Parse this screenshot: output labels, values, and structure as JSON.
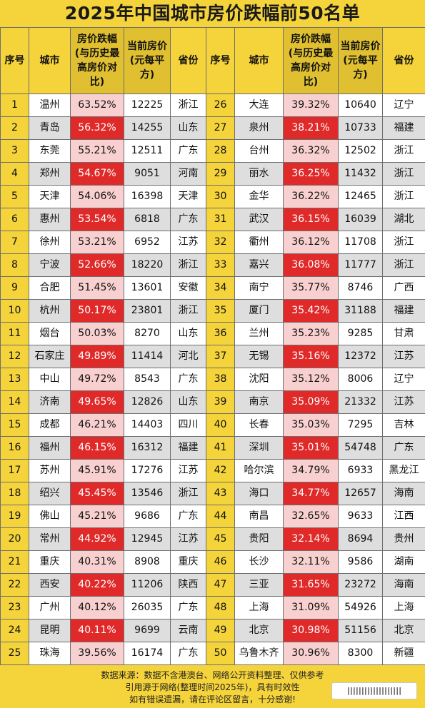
{
  "title": "2025年中国城市房价跌幅前50名单",
  "headers": {
    "seq": "序号",
    "city": "城市",
    "drop": "房价跌幅(与历史最高房价对比)",
    "price": "当前房价(元每平方)",
    "province": "省份"
  },
  "rows": [
    {
      "left": {
        "seq": "1",
        "city": "温州",
        "drop": "63.52%",
        "price": "12225",
        "province": "浙江"
      },
      "right": {
        "seq": "26",
        "city": "大连",
        "drop": "39.32%",
        "price": "10640",
        "province": "辽宁"
      }
    },
    {
      "left": {
        "seq": "2",
        "city": "青岛",
        "drop": "56.32%",
        "price": "14255",
        "province": "山东"
      },
      "right": {
        "seq": "27",
        "city": "泉州",
        "drop": "38.21%",
        "price": "10733",
        "province": "福建"
      }
    },
    {
      "left": {
        "seq": "3",
        "city": "东莞",
        "drop": "55.21%",
        "price": "12511",
        "province": "广东"
      },
      "right": {
        "seq": "28",
        "city": "台州",
        "drop": "36.32%",
        "price": "12502",
        "province": "浙江"
      }
    },
    {
      "left": {
        "seq": "4",
        "city": "郑州",
        "drop": "54.67%",
        "price": "9051",
        "province": "河南"
      },
      "right": {
        "seq": "29",
        "city": "丽水",
        "drop": "36.25%",
        "price": "11432",
        "province": "浙江"
      }
    },
    {
      "left": {
        "seq": "5",
        "city": "天津",
        "drop": "54.06%",
        "price": "16398",
        "province": "天津"
      },
      "right": {
        "seq": "30",
        "city": "金华",
        "drop": "36.22%",
        "price": "12465",
        "province": "浙江"
      }
    },
    {
      "left": {
        "seq": "6",
        "city": "惠州",
        "drop": "53.54%",
        "price": "6818",
        "province": "广东"
      },
      "right": {
        "seq": "31",
        "city": "武汉",
        "drop": "36.15%",
        "price": "16039",
        "province": "湖北"
      }
    },
    {
      "left": {
        "seq": "7",
        "city": "徐州",
        "drop": "53.21%",
        "price": "6952",
        "province": "江苏"
      },
      "right": {
        "seq": "32",
        "city": "衢州",
        "drop": "36.12%",
        "price": "11708",
        "province": "浙江"
      }
    },
    {
      "left": {
        "seq": "8",
        "city": "宁波",
        "drop": "52.66%",
        "price": "18220",
        "province": "浙江"
      },
      "right": {
        "seq": "33",
        "city": "嘉兴",
        "drop": "36.08%",
        "price": "11777",
        "province": "浙江"
      }
    },
    {
      "left": {
        "seq": "9",
        "city": "合肥",
        "drop": "51.45%",
        "price": "13601",
        "province": "安徽"
      },
      "right": {
        "seq": "34",
        "city": "南宁",
        "drop": "35.77%",
        "price": "8746",
        "province": "广西"
      }
    },
    {
      "left": {
        "seq": "10",
        "city": "杭州",
        "drop": "50.17%",
        "price": "23801",
        "province": "浙江"
      },
      "right": {
        "seq": "35",
        "city": "厦门",
        "drop": "35.42%",
        "price": "31188",
        "province": "福建"
      }
    },
    {
      "left": {
        "seq": "11",
        "city": "烟台",
        "drop": "50.03%",
        "price": "8270",
        "province": "山东"
      },
      "right": {
        "seq": "36",
        "city": "兰州",
        "drop": "35.23%",
        "price": "9285",
        "province": "甘肃"
      }
    },
    {
      "left": {
        "seq": "12",
        "city": "石家庄",
        "drop": "49.89%",
        "price": "11414",
        "province": "河北"
      },
      "right": {
        "seq": "37",
        "city": "无锡",
        "drop": "35.16%",
        "price": "12372",
        "province": "江苏"
      }
    },
    {
      "left": {
        "seq": "13",
        "city": "中山",
        "drop": "49.72%",
        "price": "8543",
        "province": "广东"
      },
      "right": {
        "seq": "38",
        "city": "沈阳",
        "drop": "35.12%",
        "price": "8006",
        "province": "辽宁"
      }
    },
    {
      "left": {
        "seq": "14",
        "city": "济南",
        "drop": "49.65%",
        "price": "12826",
        "province": "山东"
      },
      "right": {
        "seq": "39",
        "city": "南京",
        "drop": "35.09%",
        "price": "21332",
        "province": "江苏"
      }
    },
    {
      "left": {
        "seq": "15",
        "city": "成都",
        "drop": "46.21%",
        "price": "14403",
        "province": "四川"
      },
      "right": {
        "seq": "40",
        "city": "长春",
        "drop": "35.03%",
        "price": "7295",
        "province": "吉林"
      }
    },
    {
      "left": {
        "seq": "16",
        "city": "福州",
        "drop": "46.15%",
        "price": "16312",
        "province": "福建"
      },
      "right": {
        "seq": "41",
        "city": "深圳",
        "drop": "35.01%",
        "price": "54748",
        "province": "广东"
      }
    },
    {
      "left": {
        "seq": "17",
        "city": "苏州",
        "drop": "45.91%",
        "price": "17276",
        "province": "江苏"
      },
      "right": {
        "seq": "42",
        "city": "哈尔滨",
        "drop": "34.79%",
        "price": "6933",
        "province": "黑龙江"
      }
    },
    {
      "left": {
        "seq": "18",
        "city": "绍兴",
        "drop": "45.45%",
        "price": "13546",
        "province": "浙江"
      },
      "right": {
        "seq": "43",
        "city": "海口",
        "drop": "34.77%",
        "price": "12657",
        "province": "海南"
      }
    },
    {
      "left": {
        "seq": "19",
        "city": "佛山",
        "drop": "45.21%",
        "price": "9686",
        "province": "广东"
      },
      "right": {
        "seq": "44",
        "city": "南昌",
        "drop": "32.65%",
        "price": "9633",
        "province": "江西"
      }
    },
    {
      "left": {
        "seq": "20",
        "city": "常州",
        "drop": "44.92%",
        "price": "12945",
        "province": "江苏"
      },
      "right": {
        "seq": "45",
        "city": "贵阳",
        "drop": "32.14%",
        "price": "8694",
        "province": "贵州"
      }
    },
    {
      "left": {
        "seq": "21",
        "city": "重庆",
        "drop": "40.31%",
        "price": "8908",
        "province": "重庆"
      },
      "right": {
        "seq": "46",
        "city": "长沙",
        "drop": "32.11%",
        "price": "9586",
        "province": "湖南"
      }
    },
    {
      "left": {
        "seq": "22",
        "city": "西安",
        "drop": "40.22%",
        "price": "11206",
        "province": "陕西"
      },
      "right": {
        "seq": "47",
        "city": "三亚",
        "drop": "31.65%",
        "price": "23272",
        "province": "海南"
      }
    },
    {
      "left": {
        "seq": "23",
        "city": "广州",
        "drop": "40.12%",
        "price": "26035",
        "province": "广东"
      },
      "right": {
        "seq": "48",
        "city": "上海",
        "drop": "31.09%",
        "price": "54926",
        "province": "上海"
      }
    },
    {
      "left": {
        "seq": "24",
        "city": "昆明",
        "drop": "40.11%",
        "price": "9699",
        "province": "云南"
      },
      "right": {
        "seq": "49",
        "city": "北京",
        "drop": "30.98%",
        "price": "51156",
        "province": "北京"
      }
    },
    {
      "left": {
        "seq": "25",
        "city": "珠海",
        "drop": "39.56%",
        "price": "16174",
        "province": "广东"
      },
      "right": {
        "seq": "50",
        "city": "乌鲁木齐",
        "drop": "30.96%",
        "price": "8300",
        "province": "新疆"
      }
    }
  ],
  "footer": {
    "line1": "数据来源：数据不含港澳台、网络公开资料整理、仅供参考",
    "line2": "引用源于网络(整理时间2025年)，具有时效性",
    "line3": "如有错误遗漏，请在评论区留言，十分感谢!"
  },
  "watermark": "|||||||||||||||||||",
  "colors": {
    "background": "#f5d33a",
    "highlight_red": "#e02a2a",
    "highlight_pink": "#f8d0d0",
    "row_gray": "#dedede"
  }
}
